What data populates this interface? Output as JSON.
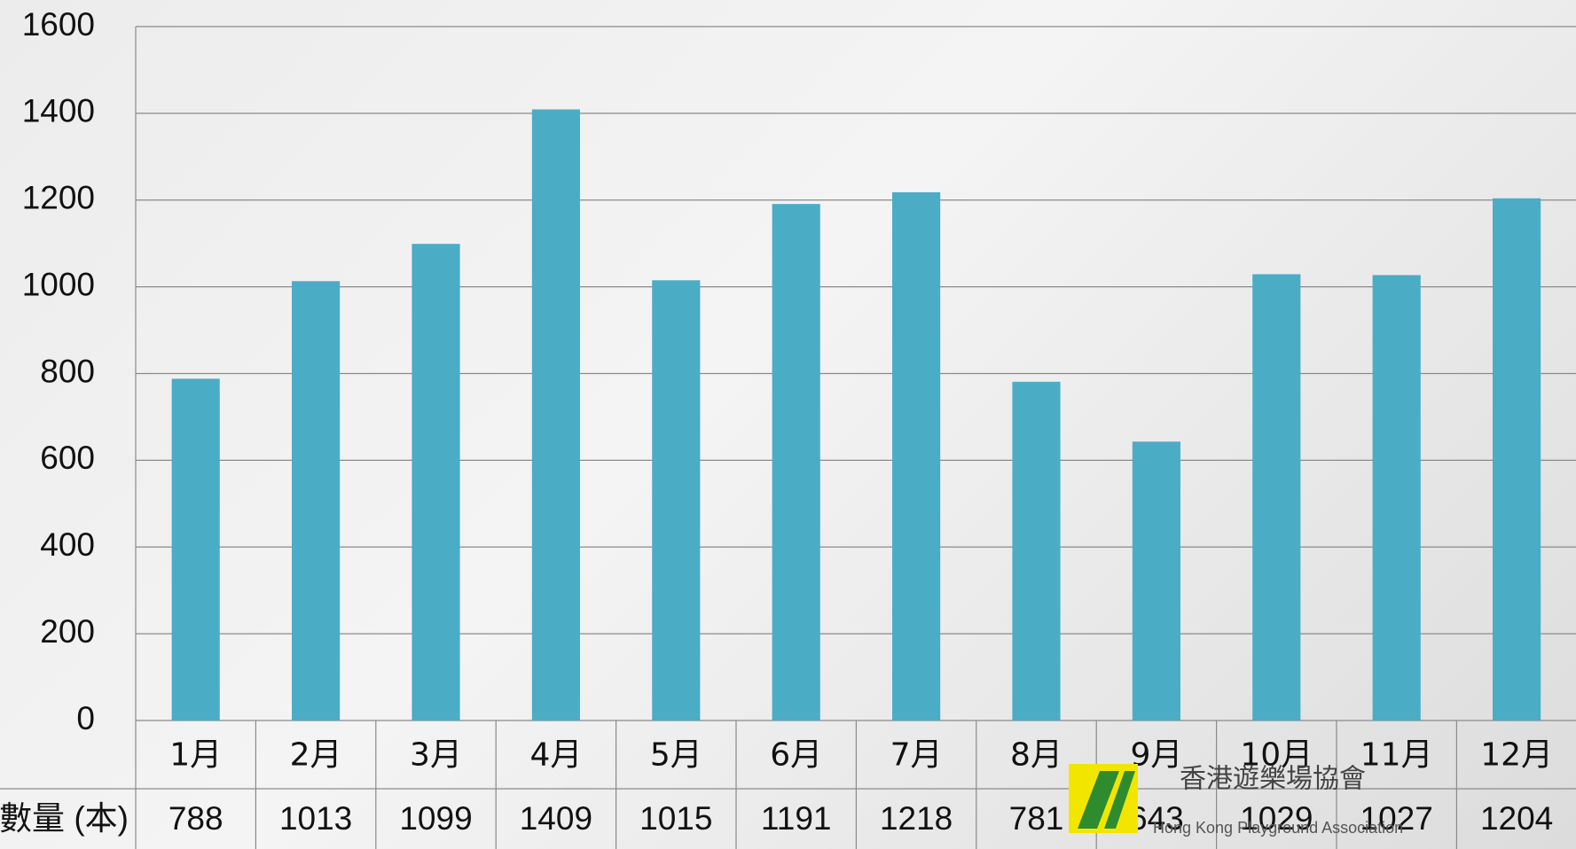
{
  "chart_data": {
    "type": "bar",
    "categories": [
      "1月",
      "2月",
      "3月",
      "4月",
      "5月",
      "6月",
      "7月",
      "8月",
      "9月",
      "10月",
      "11月",
      "12月"
    ],
    "series": [
      {
        "name": "數量 (本)",
        "color": "#4bacc6",
        "values": [
          788,
          1013,
          1099,
          1409,
          1015,
          1191,
          1218,
          781,
          643,
          1029,
          1027,
          1204
        ]
      }
    ],
    "ylim": [
      0,
      1600
    ],
    "yticks": [
      0,
      200,
      400,
      600,
      800,
      1000,
      1200,
      1400,
      1600
    ],
    "grid": true,
    "data_table": true
  },
  "logo": {
    "name": "香港遊樂場協會",
    "english": "Hong Kong Playground Association"
  }
}
